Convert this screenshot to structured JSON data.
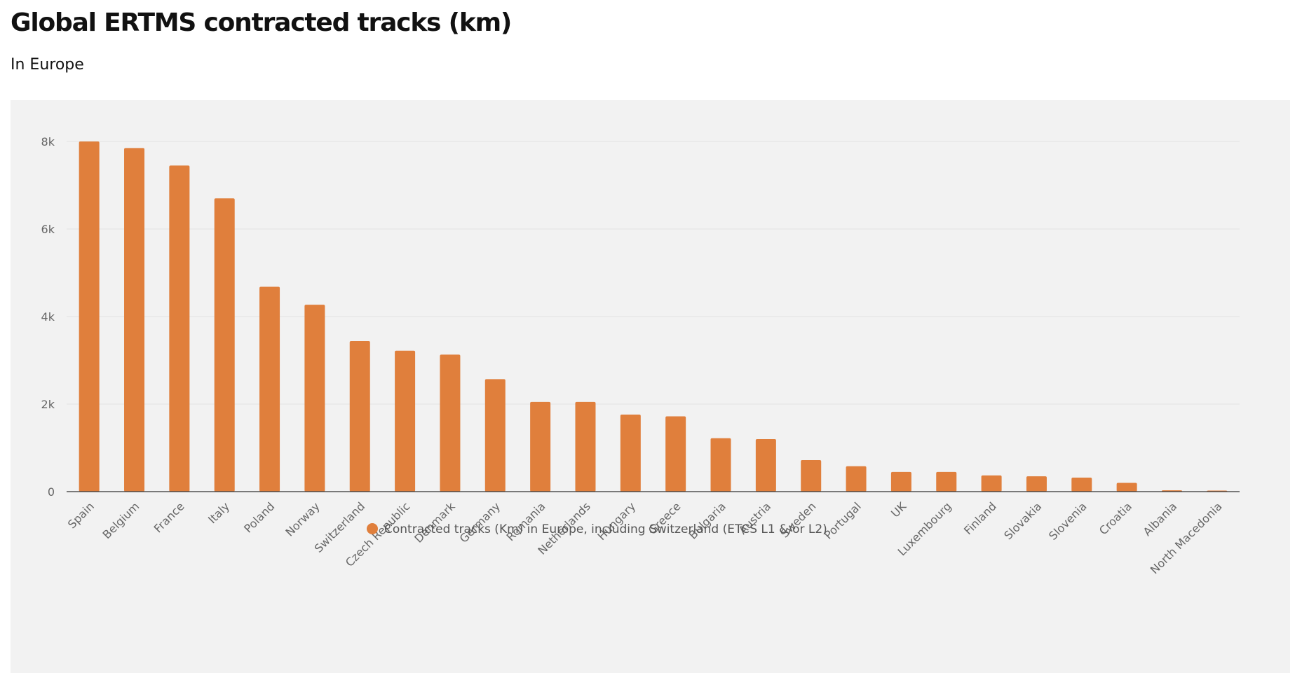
{
  "header": {
    "title": "Global ERTMS contracted tracks (km)",
    "subtitle": "In Europe"
  },
  "colors": {
    "bar": "#e07f3c",
    "panel_background": "#f2f2f2",
    "gridline": "#e3e3e3",
    "axis_line": "#333333"
  },
  "chart_data": {
    "type": "bar",
    "title": "Global ERTMS contracted tracks (km)",
    "subtitle": "In Europe",
    "xlabel": "",
    "ylabel": "",
    "ylim": [
      0,
      8000
    ],
    "yticks": [
      0,
      2000,
      4000,
      6000,
      8000
    ],
    "ytick_labels": [
      "0",
      "2k",
      "4k",
      "6k",
      "8k"
    ],
    "grid": true,
    "legend_position": "bottom-center",
    "categories": [
      "Spain",
      "Belgium",
      "France",
      "Italy",
      "Poland",
      "Norway",
      "Switzerland",
      "Czech Republic",
      "Denmark",
      "Germany",
      "Romania",
      "Netherlands",
      "Hungary",
      "Greece",
      "Bulgaria",
      "Austria",
      "Sweden",
      "Portugal",
      "UK",
      "Luxembourg",
      "Finland",
      "Slovakia",
      "Slovenia",
      "Croatia",
      "Albania",
      "North Macedonia"
    ],
    "series": [
      {
        "name": "Contracted tracks (Km) in Europe, including Switzerland (ETCS L1 &/or L2)",
        "color": "#e07f3c",
        "values": [
          8000,
          7850,
          7450,
          6700,
          4680,
          4270,
          3440,
          3220,
          3130,
          2570,
          2050,
          2050,
          1760,
          1720,
          1220,
          1200,
          720,
          580,
          450,
          450,
          370,
          350,
          320,
          200,
          30,
          25
        ]
      }
    ]
  }
}
